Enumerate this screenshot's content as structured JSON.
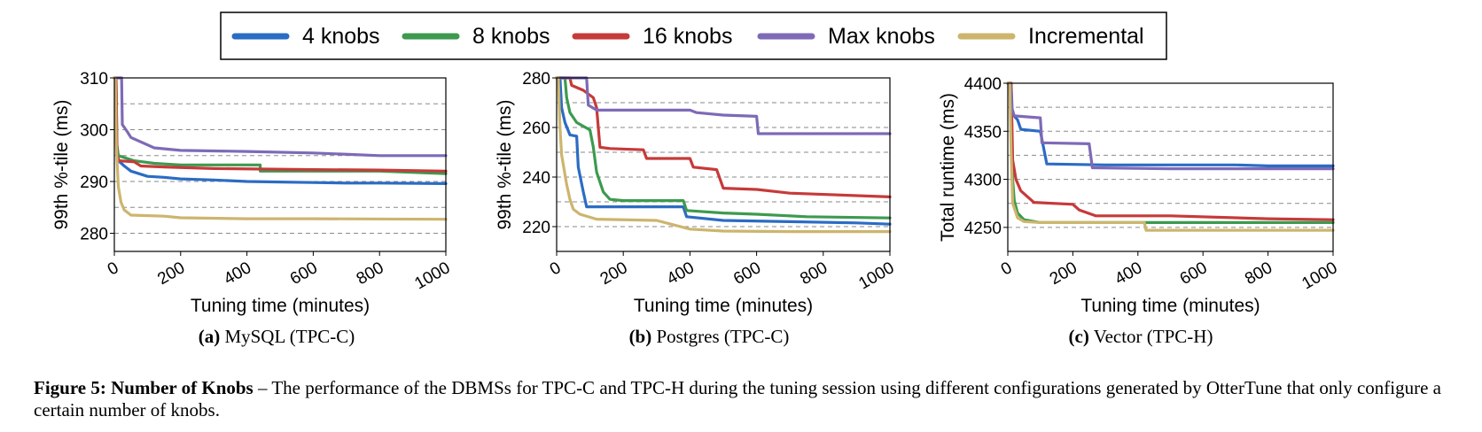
{
  "legend": {
    "entries": [
      {
        "label": "4 knobs",
        "color": "#2b6cc4"
      },
      {
        "label": "8 knobs",
        "color": "#3d9a4f"
      },
      {
        "label": "16 knobs",
        "color": "#c63a3a"
      },
      {
        "label": "Max knobs",
        "color": "#7e6ab7"
      },
      {
        "label": "Incremental",
        "color": "#cdb56e"
      }
    ]
  },
  "chart_data": [
    {
      "type": "line",
      "subcaption_letter": "(a)",
      "subcaption_text": "MySQL (TPC-C)",
      "xlabel": "Tuning time (minutes)",
      "ylabel": "99th %-tile (ms)",
      "xlim": [
        0,
        1000
      ],
      "ylim": [
        276.5,
        310
      ],
      "xticks": [
        0,
        200,
        400,
        600,
        800,
        1000
      ],
      "yticks": [
        280,
        290,
        300,
        310
      ],
      "grid_y": [
        280,
        285,
        290,
        295,
        300,
        305,
        310
      ],
      "series": [
        {
          "name": "4 knobs",
          "points": [
            [
              0,
              310
            ],
            [
              4,
              310
            ],
            [
              6,
              300
            ],
            [
              8,
              296
            ],
            [
              12,
              294
            ],
            [
              30,
              293
            ],
            [
              50,
              292
            ],
            [
              100,
              291
            ],
            [
              150,
              290.8
            ],
            [
              200,
              290.5
            ],
            [
              250,
              290.4
            ],
            [
              300,
              290.3
            ],
            [
              400,
              290
            ],
            [
              500,
              289.9
            ],
            [
              600,
              289.8
            ],
            [
              700,
              289.7
            ],
            [
              800,
              289.7
            ],
            [
              1000,
              289.6
            ]
          ]
        },
        {
          "name": "8 knobs",
          "points": [
            [
              0,
              310
            ],
            [
              5,
              310
            ],
            [
              8,
              297
            ],
            [
              12,
              295
            ],
            [
              60,
              294
            ],
            [
              120,
              293.5
            ],
            [
              200,
              293.2
            ],
            [
              440,
              293.2
            ],
            [
              440,
              292
            ],
            [
              600,
              292
            ],
            [
              800,
              292
            ],
            [
              1000,
              291.5
            ]
          ]
        },
        {
          "name": "16 knobs",
          "points": [
            [
              0,
              310
            ],
            [
              5,
              310
            ],
            [
              8,
              295
            ],
            [
              15,
              294
            ],
            [
              60,
              293.8
            ],
            [
              80,
              293
            ],
            [
              150,
              292.8
            ],
            [
              300,
              292.5
            ],
            [
              600,
              292.3
            ],
            [
              800,
              292.2
            ],
            [
              1000,
              292
            ]
          ]
        },
        {
          "name": "Max knobs",
          "points": [
            [
              0,
              310
            ],
            [
              22,
              310
            ],
            [
              24,
              301
            ],
            [
              40,
              299.5
            ],
            [
              50,
              298.5
            ],
            [
              120,
              296.5
            ],
            [
              200,
              296
            ],
            [
              400,
              295.8
            ],
            [
              600,
              295.5
            ],
            [
              800,
              295
            ],
            [
              1000,
              295
            ]
          ]
        },
        {
          "name": "Incremental",
          "points": [
            [
              0,
              310
            ],
            [
              3,
              310
            ],
            [
              6,
              297
            ],
            [
              12,
              289
            ],
            [
              20,
              286
            ],
            [
              30,
              284.5
            ],
            [
              50,
              283.5
            ],
            [
              150,
              283.3
            ],
            [
              200,
              283
            ],
            [
              400,
              282.8
            ],
            [
              600,
              282.8
            ],
            [
              1000,
              282.7
            ]
          ]
        }
      ]
    },
    {
      "type": "line",
      "subcaption_letter": "(b)",
      "subcaption_text": "Postgres (TPC-C)",
      "xlabel": "Tuning time (minutes)",
      "ylabel": "99th %-tile (ms)",
      "xlim": [
        0,
        1000
      ],
      "ylim": [
        210,
        280
      ],
      "xticks": [
        0,
        200,
        400,
        600,
        800,
        1000
      ],
      "yticks": [
        220,
        240,
        260,
        280
      ],
      "grid_y": [
        220,
        230,
        240,
        250,
        260,
        270,
        280
      ],
      "series": [
        {
          "name": "4 knobs",
          "points": [
            [
              0,
              280
            ],
            [
              10,
              280
            ],
            [
              15,
              268
            ],
            [
              25,
              262
            ],
            [
              40,
              257
            ],
            [
              60,
              256.5
            ],
            [
              65,
              244
            ],
            [
              80,
              234
            ],
            [
              90,
              228
            ],
            [
              150,
              228
            ],
            [
              380,
              228
            ],
            [
              390,
              224
            ],
            [
              500,
              222.5
            ],
            [
              700,
              222
            ],
            [
              900,
              221.5
            ],
            [
              1000,
              221
            ]
          ]
        },
        {
          "name": "8 knobs",
          "points": [
            [
              0,
              280
            ],
            [
              25,
              280
            ],
            [
              30,
              272
            ],
            [
              40,
              266
            ],
            [
              60,
              262
            ],
            [
              100,
              259
            ],
            [
              110,
              252
            ],
            [
              120,
              242
            ],
            [
              140,
              234
            ],
            [
              160,
              231
            ],
            [
              200,
              230.5
            ],
            [
              380,
              230.5
            ],
            [
              390,
              226.5
            ],
            [
              500,
              225.5
            ],
            [
              600,
              225
            ],
            [
              750,
              224
            ],
            [
              1000,
              223.5
            ]
          ]
        },
        {
          "name": "16 knobs",
          "points": [
            [
              0,
              280
            ],
            [
              40,
              280
            ],
            [
              45,
              277
            ],
            [
              80,
              275
            ],
            [
              110,
              272
            ],
            [
              120,
              268
            ],
            [
              130,
              252
            ],
            [
              160,
              251.5
            ],
            [
              260,
              251
            ],
            [
              270,
              247.5
            ],
            [
              400,
              247.5
            ],
            [
              410,
              244
            ],
            [
              480,
              243
            ],
            [
              500,
              235.5
            ],
            [
              600,
              235
            ],
            [
              700,
              233.5
            ],
            [
              1000,
              232
            ]
          ]
        },
        {
          "name": "Max knobs",
          "points": [
            [
              0,
              280
            ],
            [
              90,
              280
            ],
            [
              95,
              269
            ],
            [
              120,
              267
            ],
            [
              300,
              267
            ],
            [
              400,
              267
            ],
            [
              420,
              266
            ],
            [
              500,
              265
            ],
            [
              600,
              264.5
            ],
            [
              605,
              257.5
            ],
            [
              1000,
              257.5
            ]
          ]
        },
        {
          "name": "Incremental",
          "points": [
            [
              0,
              280
            ],
            [
              5,
              280
            ],
            [
              10,
              260
            ],
            [
              15,
              249
            ],
            [
              30,
              237
            ],
            [
              40,
              231
            ],
            [
              50,
              227
            ],
            [
              70,
              225
            ],
            [
              120,
              223
            ],
            [
              300,
              222.5
            ],
            [
              400,
              219
            ],
            [
              500,
              218.2
            ],
            [
              700,
              218
            ],
            [
              1000,
              218
            ]
          ]
        }
      ]
    },
    {
      "type": "line",
      "subcaption_letter": "(c)",
      "subcaption_text": "Vector (TPC-H)",
      "xlabel": "Tuning time (minutes)",
      "ylabel": "Total runtime (ms)",
      "xlim": [
        0,
        1000
      ],
      "ylim": [
        4225,
        4400
      ],
      "xticks": [
        0,
        200,
        400,
        600,
        800,
        1000
      ],
      "yticks": [
        4250,
        4300,
        4350,
        4400
      ],
      "grid_y": [
        4250,
        4275,
        4300,
        4325,
        4350,
        4375,
        4400
      ],
      "series": [
        {
          "name": "4 knobs",
          "points": [
            [
              0,
              4400
            ],
            [
              10,
              4400
            ],
            [
              14,
              4368
            ],
            [
              30,
              4362
            ],
            [
              40,
              4352
            ],
            [
              100,
              4350
            ],
            [
              120,
              4316
            ],
            [
              300,
              4315
            ],
            [
              700,
              4315
            ],
            [
              800,
              4314
            ],
            [
              1000,
              4314
            ]
          ]
        },
        {
          "name": "8 knobs",
          "points": [
            [
              0,
              4400
            ],
            [
              10,
              4400
            ],
            [
              15,
              4300
            ],
            [
              20,
              4278
            ],
            [
              30,
              4265
            ],
            [
              50,
              4258
            ],
            [
              100,
              4255
            ],
            [
              400,
              4255
            ],
            [
              700,
              4255
            ],
            [
              1000,
              4255
            ]
          ]
        },
        {
          "name": "16 knobs",
          "points": [
            [
              0,
              4400
            ],
            [
              10,
              4400
            ],
            [
              15,
              4320
            ],
            [
              25,
              4300
            ],
            [
              40,
              4288
            ],
            [
              60,
              4282
            ],
            [
              80,
              4276
            ],
            [
              200,
              4274
            ],
            [
              220,
              4268
            ],
            [
              270,
              4262
            ],
            [
              500,
              4262
            ],
            [
              800,
              4259
            ],
            [
              1000,
              4258
            ]
          ]
        },
        {
          "name": "Max knobs",
          "points": [
            [
              0,
              4400
            ],
            [
              8,
              4400
            ],
            [
              12,
              4375
            ],
            [
              20,
              4366
            ],
            [
              100,
              4364
            ],
            [
              105,
              4338
            ],
            [
              250,
              4337
            ],
            [
              260,
              4312
            ],
            [
              500,
              4311
            ],
            [
              1000,
              4311
            ]
          ]
        },
        {
          "name": "Incremental",
          "points": [
            [
              0,
              4400
            ],
            [
              6,
              4400
            ],
            [
              10,
              4330
            ],
            [
              15,
              4275
            ],
            [
              30,
              4260
            ],
            [
              50,
              4256
            ],
            [
              100,
              4255
            ],
            [
              300,
              4255
            ],
            [
              420,
              4255
            ],
            [
              425,
              4247
            ],
            [
              1000,
              4247
            ]
          ]
        }
      ]
    }
  ],
  "caption": {
    "label": "Figure 5: Number of Knobs",
    "text": " – The performance of the DBMSs for TPC-C and TPC-H during the tuning session using different configurations generated by OtterTune that only configure a certain number of knobs."
  }
}
